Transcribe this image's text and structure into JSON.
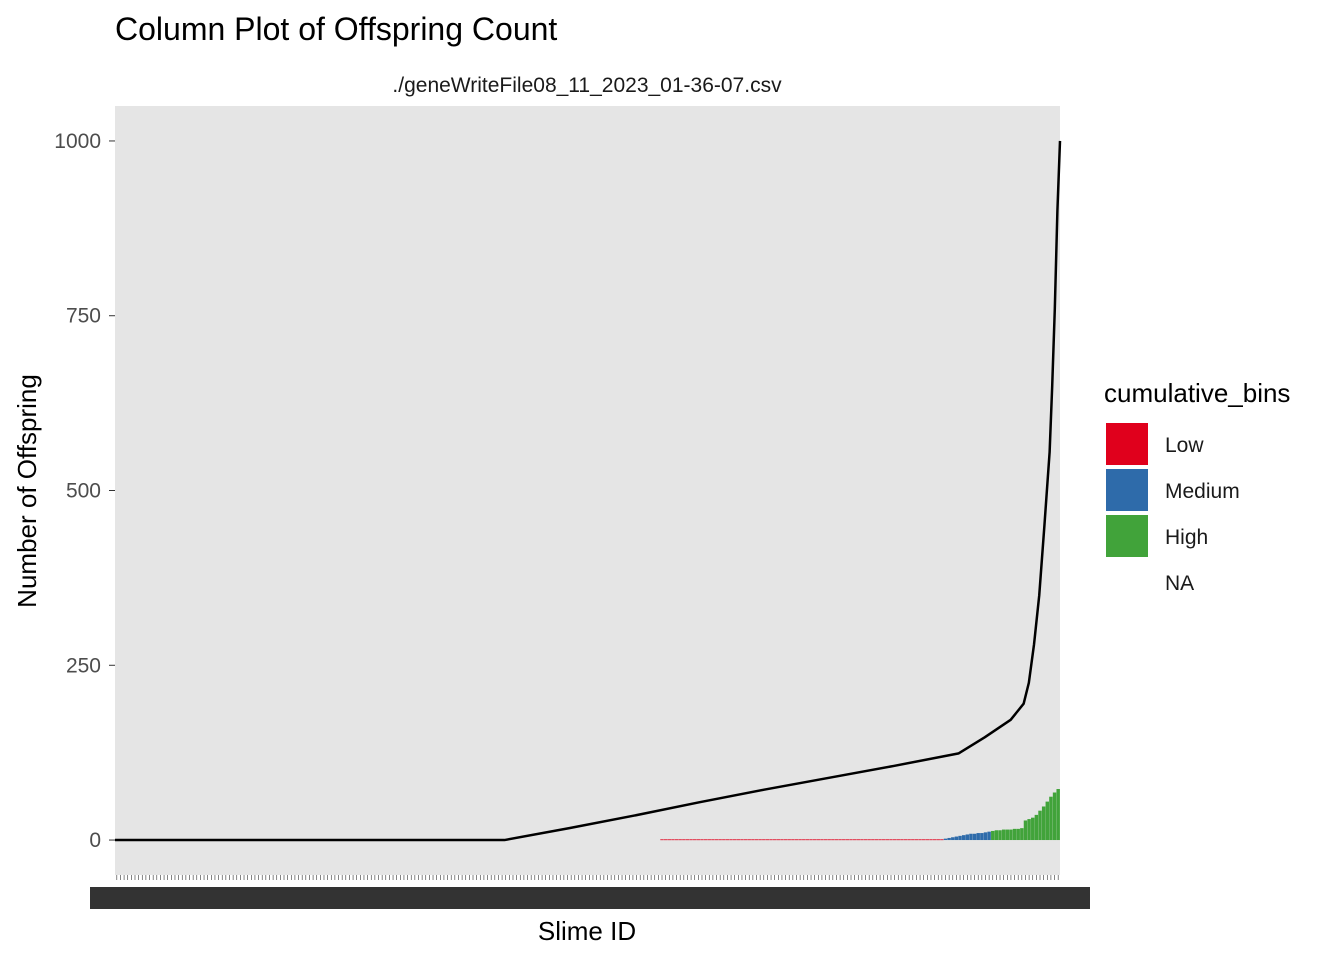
{
  "chart_data": {
    "type": "bar",
    "title": "Column Plot of Offspring Count",
    "subtitle": "./geneWriteFile08_11_2023_01-36-07.csv",
    "xlabel": "Slime ID",
    "ylabel": "Number of Offspring",
    "ylim": [
      -50,
      1050
    ],
    "yticks": [
      0,
      250,
      500,
      750,
      1000
    ],
    "grid": false,
    "legend": {
      "title": "cumulative_bins",
      "placement": "right",
      "entries": [
        {
          "label": "Low",
          "color": "#E0001C"
        },
        {
          "label": "Medium",
          "color": "#2E6BAA"
        },
        {
          "label": "High",
          "color": "#41A33A"
        },
        {
          "label": "NA",
          "color": "transparent"
        }
      ]
    },
    "n_categories": 260,
    "x_tick_labels_note": "",
    "series": [
      {
        "kind": "column",
        "bins": [
          {
            "bin": "Low",
            "color": "#E0001C",
            "from_index": 150,
            "to_index": 227,
            "values": [
              1,
              1,
              1,
              1,
              1,
              1,
              1,
              1,
              1,
              1,
              1,
              1,
              1,
              1,
              1,
              1,
              1,
              1,
              1,
              1,
              1,
              1,
              1,
              1,
              1,
              1,
              1,
              1,
              1,
              1,
              1,
              1,
              1,
              1,
              1,
              1,
              1,
              1,
              1,
              1,
              1,
              1,
              1,
              1,
              1,
              1,
              1,
              1,
              1,
              1,
              1,
              1,
              1,
              1,
              1,
              1,
              1,
              1,
              1,
              1,
              1,
              1,
              1,
              1,
              1,
              1,
              1,
              1,
              1,
              1,
              1,
              1,
              1,
              1,
              1,
              1,
              1,
              1
            ]
          },
          {
            "bin": "Medium",
            "color": "#2E6BAA",
            "from_index": 228,
            "to_index": 240,
            "values": [
              2,
              3,
              4,
              5,
              6,
              7,
              8,
              9,
              9,
              10,
              10,
              11,
              12
            ]
          },
          {
            "bin": "High",
            "color": "#41A33A",
            "from_index": 241,
            "to_index": 259,
            "values": [
              13,
              14,
              14,
              15,
              15,
              15,
              16,
              16,
              17,
              28,
              30,
              32,
              36,
              42,
              48,
              55,
              62,
              68,
              73
            ]
          }
        ]
      },
      {
        "kind": "line",
        "color": "#000000",
        "points": [
          [
            0,
            0
          ],
          [
            150,
            0
          ],
          [
            175,
            17
          ],
          [
            200,
            35
          ],
          [
            225,
            54
          ],
          [
            250,
            72
          ],
          [
            275,
            89
          ],
          [
            300,
            106
          ],
          [
            325,
            124
          ],
          [
            335,
            147
          ],
          [
            345,
            172
          ],
          [
            350,
            195
          ],
          [
            352,
            225
          ],
          [
            354,
            280
          ],
          [
            356,
            350
          ],
          [
            358,
            450
          ],
          [
            360,
            555
          ],
          [
            361,
            650
          ],
          [
            362,
            760
          ],
          [
            363,
            900
          ],
          [
            364,
            1000
          ]
        ]
      }
    ]
  }
}
